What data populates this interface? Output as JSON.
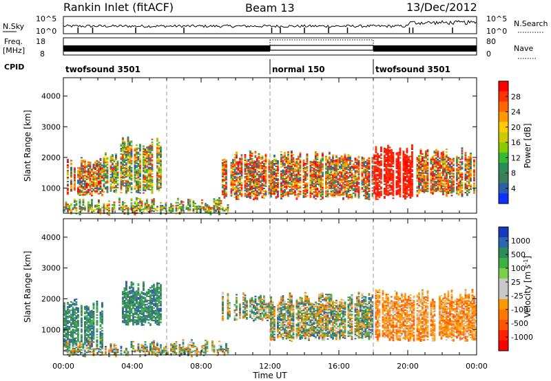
{
  "header": {
    "station": "Rankin Inlet (fitACF)",
    "beam": "Beam 13",
    "date": "13/Dec/2012"
  },
  "top_panel": {
    "left_label": "N.Sky",
    "right_label": "N.Search",
    "left_ticks": [
      "10^5",
      "10^0"
    ],
    "right_ticks": [
      "10^5",
      "10^0"
    ]
  },
  "freq_panel": {
    "left_label_1": "Freq.",
    "left_label_2": "[MHz]",
    "right_label": "Nave",
    "left_ticks": [
      "18",
      "8"
    ],
    "right_ticks": [
      "80",
      "0"
    ]
  },
  "cpid": {
    "label": "CPID",
    "segments": [
      {
        "label": "twofsound 3501",
        "start_hour": 0,
        "end_hour": 12
      },
      {
        "label": "normal 150",
        "start_hour": 12,
        "end_hour": 18
      },
      {
        "label": "twofsound 3501",
        "start_hour": 18,
        "end_hour": 24
      }
    ]
  },
  "time_axis": {
    "label": "Time UT",
    "ticks": [
      "00:00",
      "04:00",
      "08:00",
      "12:00",
      "16:00",
      "20:00",
      "00:00"
    ]
  },
  "power_colorbar": {
    "label": "Power [dB]",
    "ticks": [
      "28",
      "24",
      "20",
      "16",
      "12",
      "8",
      "4"
    ],
    "colors": [
      "#ff0000",
      "#ff3300",
      "#ff6600",
      "#ff9900",
      "#ffcc00",
      "#cccc00",
      "#88cc00",
      "#33bb33",
      "#2e8b57",
      "#3a7d5a",
      "#2b5fa8",
      "#1030ff"
    ]
  },
  "velocity_colorbar": {
    "label": "Velocity [m s^-1]",
    "ticks": [
      "1000",
      "500",
      "100",
      "25",
      "-25",
      "-100",
      "-500",
      "-1000"
    ],
    "colors": [
      "#1838c0",
      "#2b66b0",
      "#2e8b57",
      "#3cb043",
      "#7ad04a",
      "#c8c8c8",
      "#c8c8c8",
      "#ff9900",
      "#ff7700",
      "#ff5500",
      "#ff2200",
      "#ff0000"
    ]
  },
  "chart_data": [
    {
      "type": "heatmap",
      "name": "power",
      "xlabel": "Time UT",
      "ylabel": "Slant Range [km]",
      "xlim": [
        0,
        24
      ],
      "ylim": [
        180,
        4600
      ],
      "yticks": [
        1000,
        2000,
        3000,
        4000
      ],
      "regions": [
        {
          "t0": 0.0,
          "t1": 2.3,
          "r0": 800,
          "r1": 1800,
          "level": "high"
        },
        {
          "t0": 2.3,
          "t1": 3.2,
          "r0": 900,
          "r1": 2000,
          "level": "mid"
        },
        {
          "t0": 3.3,
          "t1": 5.6,
          "r0": 900,
          "r1": 2500,
          "level": "mid"
        },
        {
          "t0": 0.0,
          "t1": 9.5,
          "r0": 200,
          "r1": 500,
          "level": "mid"
        },
        {
          "t0": 9.2,
          "t1": 12.0,
          "r0": 700,
          "r1": 2000,
          "level": "high"
        },
        {
          "t0": 12.0,
          "t1": 18.0,
          "r0": 700,
          "r1": 2000,
          "level": "high"
        },
        {
          "t0": 18.0,
          "t1": 20.5,
          "r0": 700,
          "r1": 2200,
          "level": "very-high"
        },
        {
          "t0": 20.5,
          "t1": 24.0,
          "r0": 800,
          "r1": 2100,
          "level": "high"
        }
      ]
    },
    {
      "type": "heatmap",
      "name": "velocity",
      "xlabel": "Time UT",
      "ylabel": "Slant Range [km]",
      "xlim": [
        0,
        24
      ],
      "ylim": [
        180,
        4600
      ],
      "yticks": [
        1000,
        2000,
        3000,
        4000
      ],
      "regions": [
        {
          "t0": 0.0,
          "t1": 2.3,
          "r0": 500,
          "r1": 1800,
          "level": "positive"
        },
        {
          "t0": 3.3,
          "t1": 5.6,
          "r0": 1200,
          "r1": 2400,
          "level": "positive"
        },
        {
          "t0": 9.2,
          "t1": 12.0,
          "r0": 1300,
          "r1": 2000,
          "level": "mixed"
        },
        {
          "t0": 12.0,
          "t1": 18.0,
          "r0": 700,
          "r1": 2000,
          "level": "mixed"
        },
        {
          "t0": 18.0,
          "t1": 24.0,
          "r0": 700,
          "r1": 2100,
          "level": "negative"
        },
        {
          "t0": 0.0,
          "t1": 9.5,
          "r0": 200,
          "r1": 500,
          "level": "mixed"
        }
      ]
    }
  ]
}
